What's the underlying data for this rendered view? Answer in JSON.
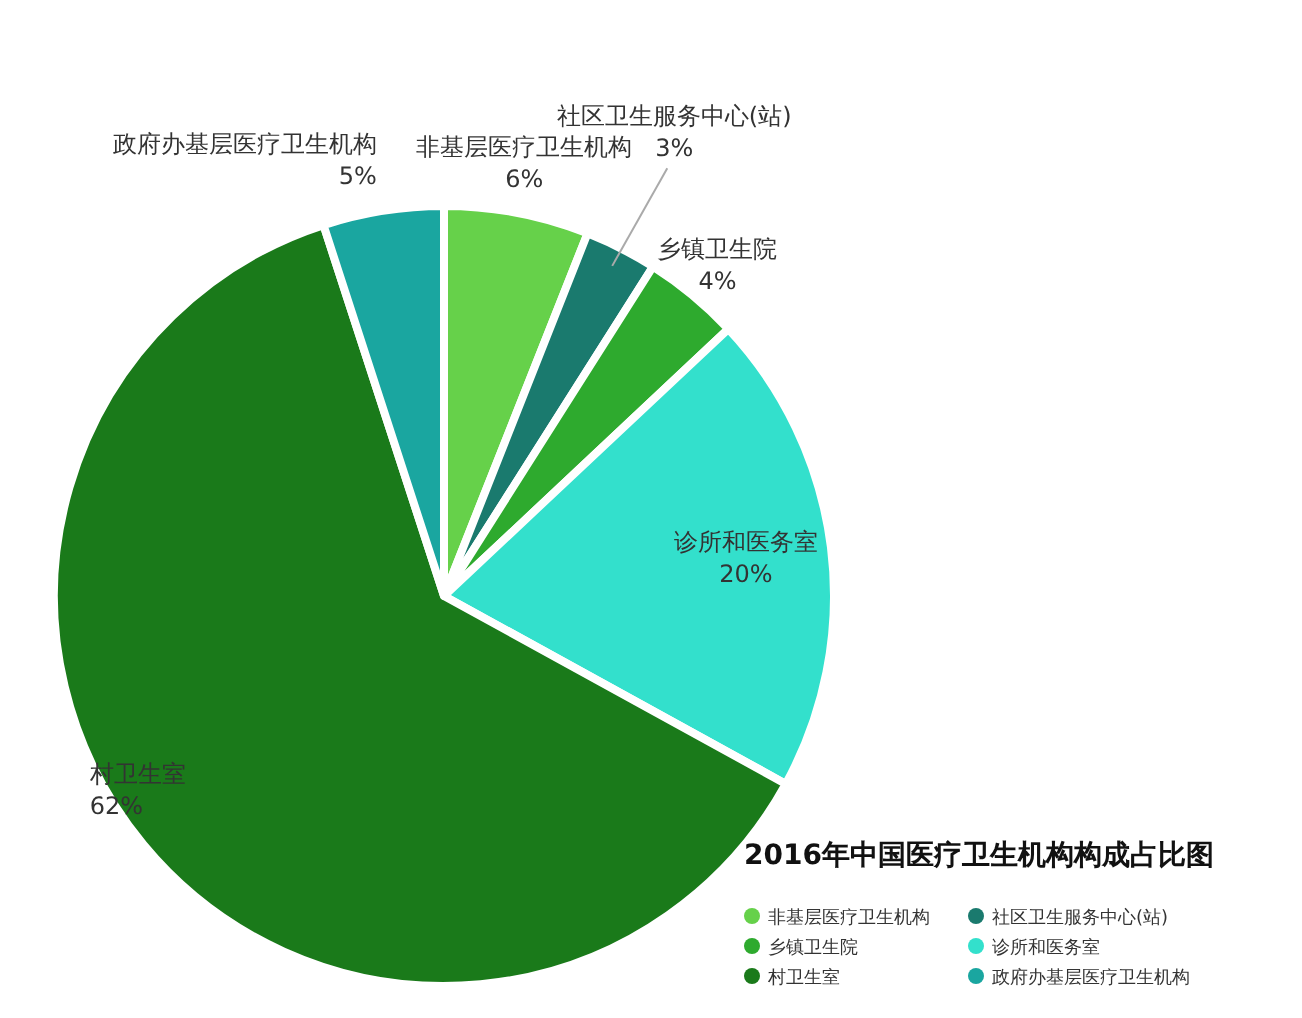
{
  "chart_data": {
    "type": "pie",
    "title": "2016年中国医疗卫生机构构成占比图",
    "categories": [
      "非基层医疗卫生机构",
      "社区卫生服务中心(站)",
      "乡镇卫生院",
      "诊所和医务室",
      "村卫生室",
      "政府办基层医疗卫生机构"
    ],
    "values": [
      6,
      3,
      4,
      20,
      62,
      5
    ],
    "colors": [
      "#66d14a",
      "#1a7a6e",
      "#2eaa2e",
      "#33e0cc",
      "#1a7a1a",
      "#1aa6a0"
    ],
    "value_labels": [
      "6%",
      "3%",
      "4%",
      "20%",
      "62%",
      "5%"
    ],
    "legend": "bottom right"
  }
}
